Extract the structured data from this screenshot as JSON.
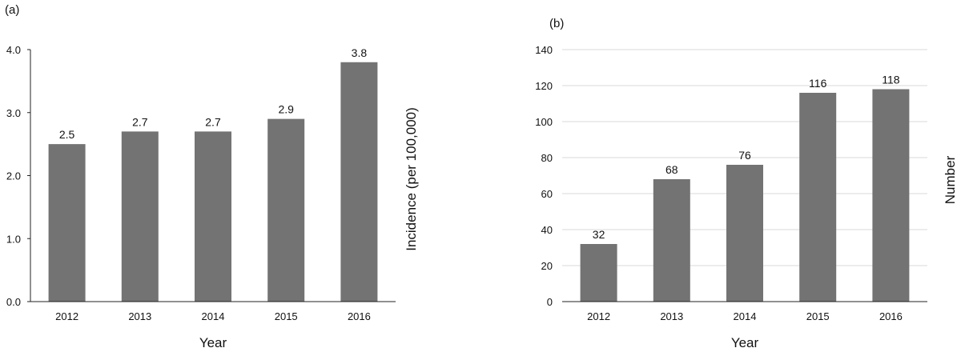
{
  "chart_data": [
    {
      "type": "bar",
      "panel_label": "(a)",
      "categories": [
        "2012",
        "2013",
        "2014",
        "2015",
        "2016"
      ],
      "values": [
        2.5,
        2.7,
        2.7,
        2.9,
        3.8
      ],
      "data_labels": [
        "2.5",
        "2.7",
        "2.7",
        "2.9",
        "3.8"
      ],
      "xlabel": "Year",
      "ylabel": "Incidence (per 100,000)",
      "ylabel_position": "right",
      "ylim": [
        0,
        4
      ],
      "yticks": [
        "0.0",
        "1.0",
        "2.0",
        "3.0",
        "4.0"
      ],
      "ytick_values": [
        0,
        1,
        2,
        3,
        4
      ],
      "grid": false,
      "bar_color": "#737373"
    },
    {
      "type": "bar",
      "panel_label": "(b)",
      "categories": [
        "2012",
        "2013",
        "2014",
        "2015",
        "2016"
      ],
      "values": [
        32,
        68,
        76,
        116,
        118
      ],
      "data_labels": [
        "32",
        "68",
        "76",
        "116",
        "118"
      ],
      "xlabel": "Year",
      "ylabel": "Number",
      "ylabel_position": "right",
      "ylim": [
        0,
        140
      ],
      "yticks": [
        "0",
        "20",
        "40",
        "60",
        "80",
        "100",
        "120",
        "140"
      ],
      "ytick_values": [
        0,
        20,
        40,
        60,
        80,
        100,
        120,
        140
      ],
      "grid": true,
      "bar_color": "#737373"
    }
  ]
}
